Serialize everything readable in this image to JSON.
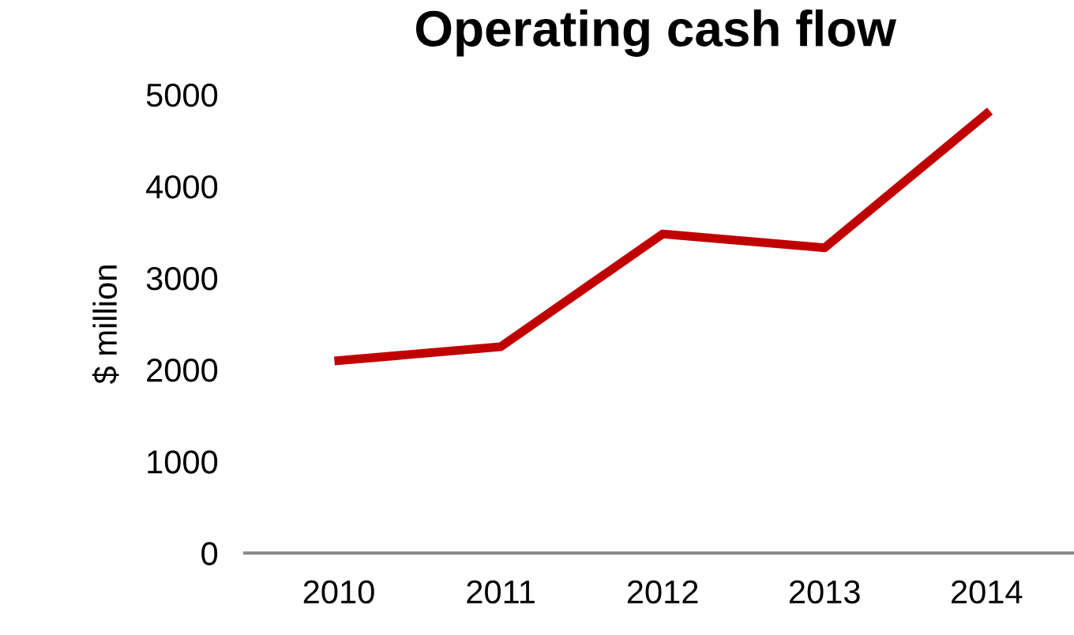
{
  "chart_data": {
    "type": "line",
    "title": "Operating cash flow",
    "ylabel": "$ million",
    "categories": [
      "2010",
      "2011",
      "2012",
      "2013",
      "2014"
    ],
    "series": [
      {
        "color": "#c00000",
        "values": [
          2100,
          2250,
          3480,
          3330,
          4790
        ]
      }
    ],
    "ylim": [
      0,
      5000
    ],
    "yticks": [
      0,
      1000,
      2000,
      3000,
      4000,
      5000
    ],
    "grid": false,
    "legend": false,
    "marker": "none",
    "line_style": "solid"
  }
}
